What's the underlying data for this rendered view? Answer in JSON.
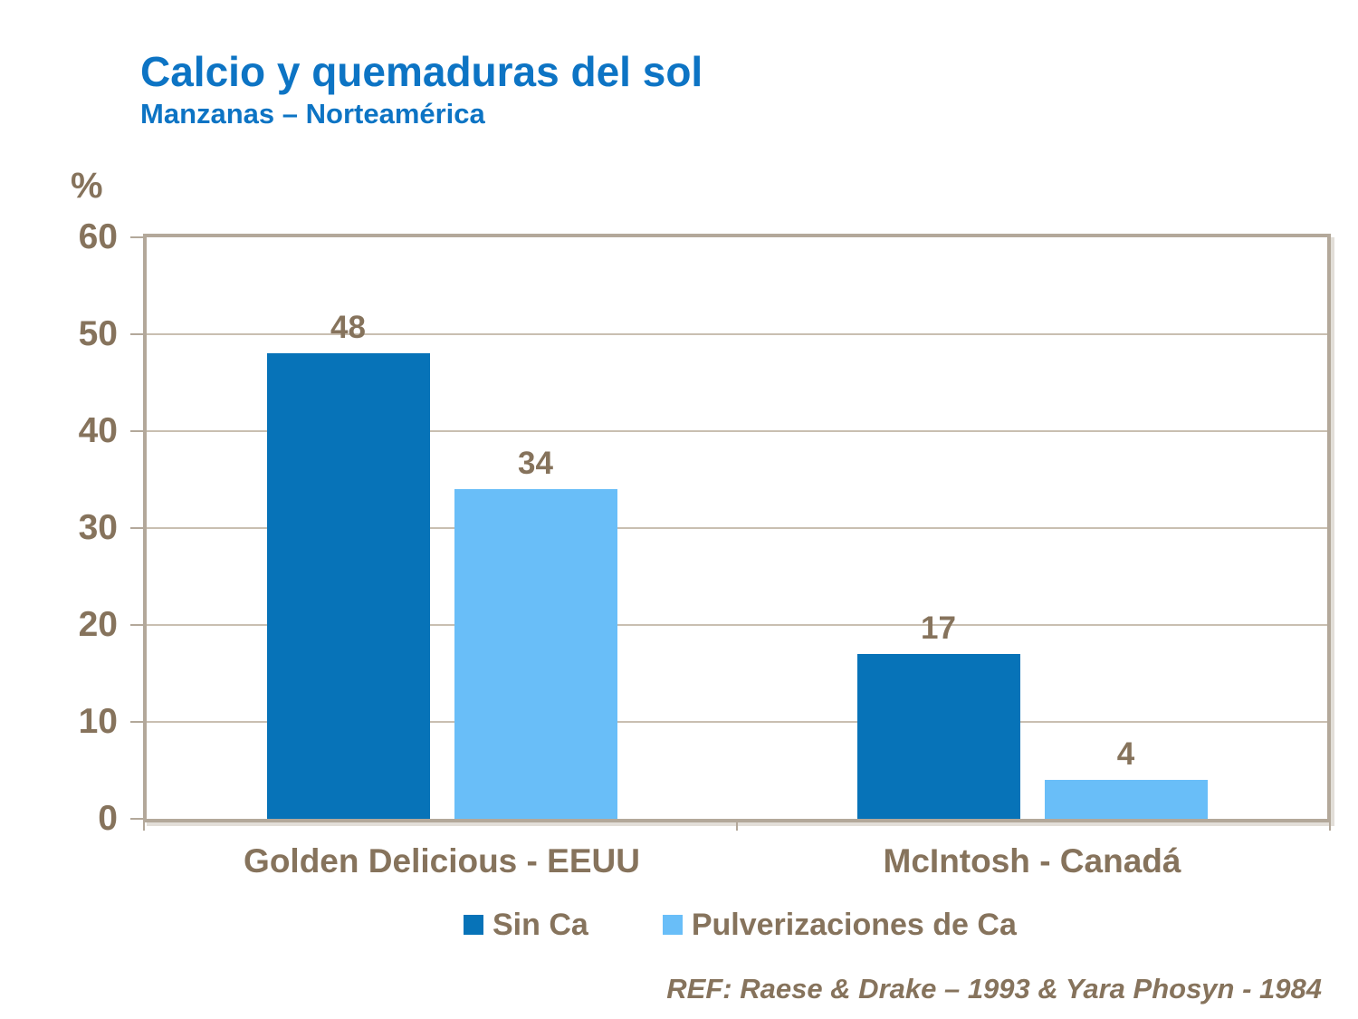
{
  "header": {
    "title": "Calcio y quemaduras del sol",
    "subtitle": "Manzanas – Norteamérica"
  },
  "chart_data": {
    "type": "bar",
    "title": "Calcio y quemaduras del sol",
    "subtitle": "Manzanas – Norteamérica",
    "ylabel": "%",
    "ylim": [
      0,
      60
    ],
    "yticks": [
      0,
      10,
      20,
      30,
      40,
      50,
      60
    ],
    "grid": true,
    "value_labels": true,
    "legend_position": "bottom",
    "categories": [
      "Golden Delicious - EEUU",
      "McIntosh - Canadá"
    ],
    "series": [
      {
        "name": "Sin Ca",
        "color": "#0773B8",
        "values": [
          48,
          17
        ]
      },
      {
        "name": "Pulverizaciones de Ca",
        "color": "#69BEF8",
        "values": [
          34,
          4
        ]
      }
    ]
  },
  "footer": {
    "reference": "REF: Raese & Drake – 1993 & Yara Phosyn - 1984"
  },
  "colors": {
    "title_blue": "#0D74C4",
    "label_text": "#86735C",
    "axis_frame": "#B3A89A",
    "gridline": "#C9BFB1",
    "background": "#FFFFFF"
  }
}
